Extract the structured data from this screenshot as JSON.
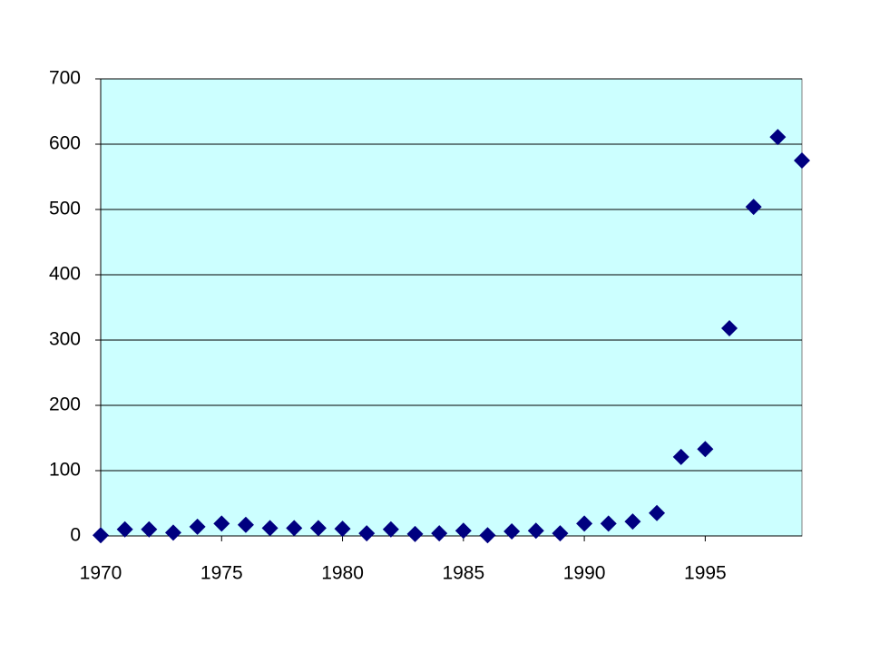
{
  "chart_data": {
    "type": "scatter",
    "x": [
      1970,
      1971,
      1972,
      1973,
      1974,
      1975,
      1976,
      1977,
      1978,
      1979,
      1980,
      1981,
      1982,
      1983,
      1984,
      1985,
      1986,
      1987,
      1988,
      1989,
      1990,
      1991,
      1992,
      1993,
      1994,
      1995,
      1996,
      1997,
      1998,
      1999
    ],
    "values": [
      1,
      10,
      10,
      5,
      14,
      19,
      17,
      12,
      12,
      12,
      11,
      4,
      10,
      3,
      4,
      8,
      1,
      7,
      8,
      4,
      19,
      19,
      22,
      35,
      121,
      133,
      318,
      504,
      611,
      575
    ],
    "color": "#000080",
    "xlim": [
      1970,
      1999
    ],
    "xticks": [
      1970,
      1975,
      1980,
      1985,
      1990,
      1995
    ],
    "ylim": [
      0,
      700
    ],
    "yticks": [
      0,
      100,
      200,
      300,
      400,
      500,
      600,
      700
    ],
    "grid": true,
    "plot_background": "#ccffff"
  }
}
